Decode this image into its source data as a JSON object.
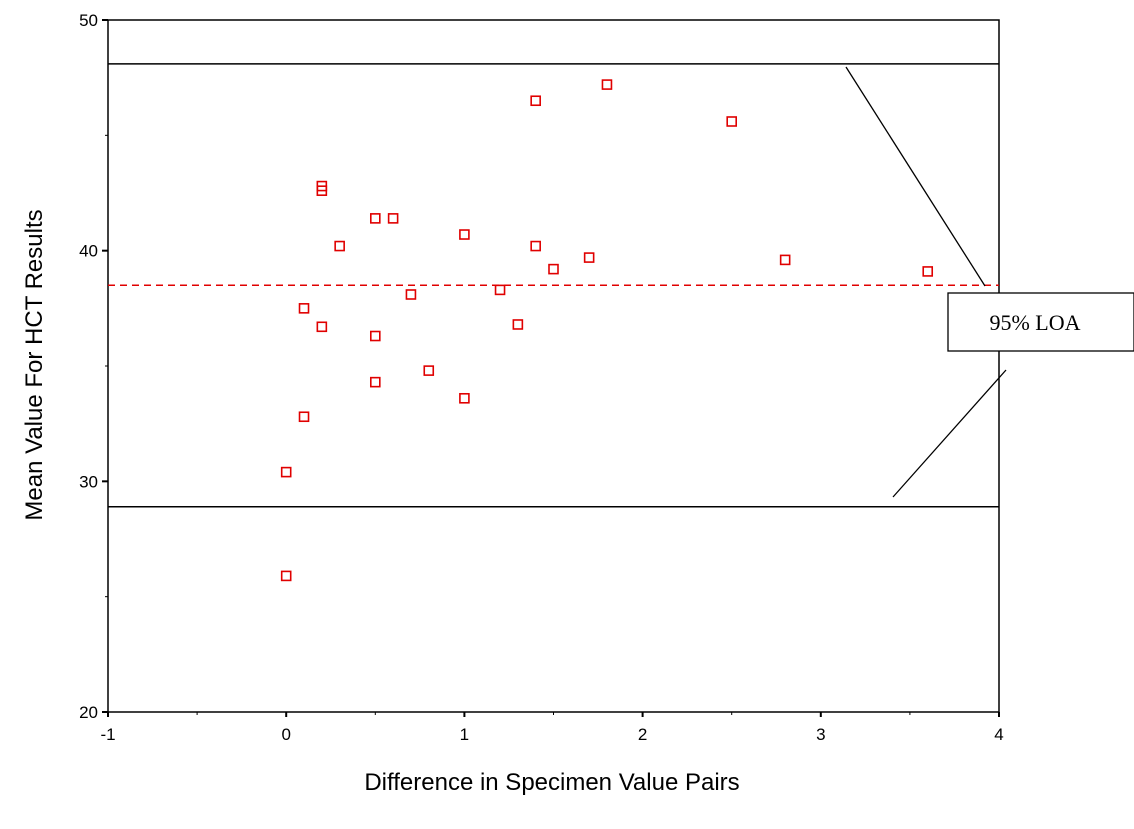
{
  "chart_data": {
    "type": "scatter",
    "xlabel": "Difference in Specimen Value Pairs",
    "ylabel": "Mean Value For HCT Results",
    "xlim": [
      -1,
      4
    ],
    "ylim": [
      20,
      50
    ],
    "x_ticks": [
      "-1",
      "0",
      "1",
      "2",
      "3",
      "4"
    ],
    "y_ticks": [
      "20",
      "30",
      "40",
      "50"
    ],
    "points": [
      {
        "x": 0.0,
        "y": 25.9
      },
      {
        "x": 0.0,
        "y": 30.4
      },
      {
        "x": 0.1,
        "y": 32.8
      },
      {
        "x": 0.1,
        "y": 37.5
      },
      {
        "x": 0.2,
        "y": 36.7
      },
      {
        "x": 0.2,
        "y": 42.6
      },
      {
        "x": 0.2,
        "y": 42.8
      },
      {
        "x": 0.3,
        "y": 40.2
      },
      {
        "x": 0.5,
        "y": 41.4
      },
      {
        "x": 0.5,
        "y": 36.3
      },
      {
        "x": 0.5,
        "y": 34.3
      },
      {
        "x": 0.6,
        "y": 41.4
      },
      {
        "x": 0.7,
        "y": 38.1
      },
      {
        "x": 0.8,
        "y": 34.8
      },
      {
        "x": 1.0,
        "y": 40.7
      },
      {
        "x": 1.0,
        "y": 33.6
      },
      {
        "x": 1.2,
        "y": 38.3
      },
      {
        "x": 1.3,
        "y": 36.8
      },
      {
        "x": 1.4,
        "y": 46.5
      },
      {
        "x": 1.4,
        "y": 40.2
      },
      {
        "x": 1.5,
        "y": 39.2
      },
      {
        "x": 1.7,
        "y": 39.7
      },
      {
        "x": 1.8,
        "y": 47.2
      },
      {
        "x": 2.5,
        "y": 45.6
      },
      {
        "x": 2.8,
        "y": 39.6
      },
      {
        "x": 3.6,
        "y": 39.1
      }
    ],
    "mean_line": 38.5,
    "upper_loa": 48.1,
    "lower_loa": 28.9,
    "annotation": "95% LOA",
    "colors": {
      "points": "#e00000",
      "mean_line": "#e00000",
      "loa_lines": "#000000"
    },
    "grid": false,
    "legend": "none"
  }
}
